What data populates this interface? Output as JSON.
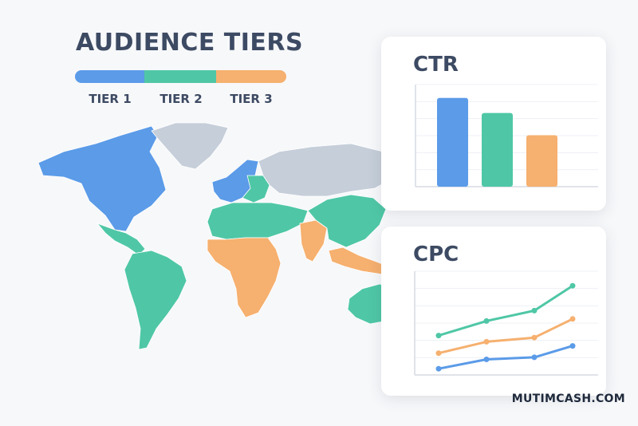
{
  "title": "AUDIENCE TIERS",
  "tiers": [
    {
      "label": "TIER 1",
      "color": "#5b9be8"
    },
    {
      "label": "TIER 2",
      "color": "#4fc7a6"
    },
    {
      "label": "TIER 3",
      "color": "#f6b06f"
    }
  ],
  "map": {
    "unassigned_color": "#c5ced9",
    "regions": [
      {
        "name": "north-america",
        "tier": 1
      },
      {
        "name": "greenland",
        "tier": 0
      },
      {
        "name": "central-america",
        "tier": 2
      },
      {
        "name": "south-america",
        "tier": 2
      },
      {
        "name": "western-europe",
        "tier": 1
      },
      {
        "name": "eastern-europe",
        "tier": 2
      },
      {
        "name": "russia",
        "tier": 0
      },
      {
        "name": "north-africa-middle-east",
        "tier": 2
      },
      {
        "name": "sub-saharan-africa",
        "tier": 3
      },
      {
        "name": "india",
        "tier": 3
      },
      {
        "name": "asia",
        "tier": 2
      },
      {
        "name": "southeast-asia",
        "tier": 3
      },
      {
        "name": "australia",
        "tier": 2
      }
    ]
  },
  "chart_data": [
    {
      "type": "bar",
      "title": "CTR",
      "categories": [
        "Tier 1",
        "Tier 2",
        "Tier 3"
      ],
      "values": [
        100,
        83,
        58
      ],
      "colors": [
        "#5b9be8",
        "#4fc7a6",
        "#f6b06f"
      ],
      "ylim": [
        0,
        115
      ],
      "grid": true
    },
    {
      "type": "line",
      "title": "CPC",
      "x": [
        1,
        2,
        3,
        4
      ],
      "series": [
        {
          "values": [
            38,
            52,
            62,
            86
          ],
          "color": "#4fc7a6"
        },
        {
          "values": [
            21,
            32,
            36,
            54
          ],
          "color": "#f6b06f"
        },
        {
          "values": [
            6,
            15,
            17,
            28
          ],
          "color": "#5b9be8"
        }
      ],
      "ylim": [
        0,
        100
      ],
      "grid": true
    }
  ],
  "watermark": "MUTIMCASH.COM"
}
